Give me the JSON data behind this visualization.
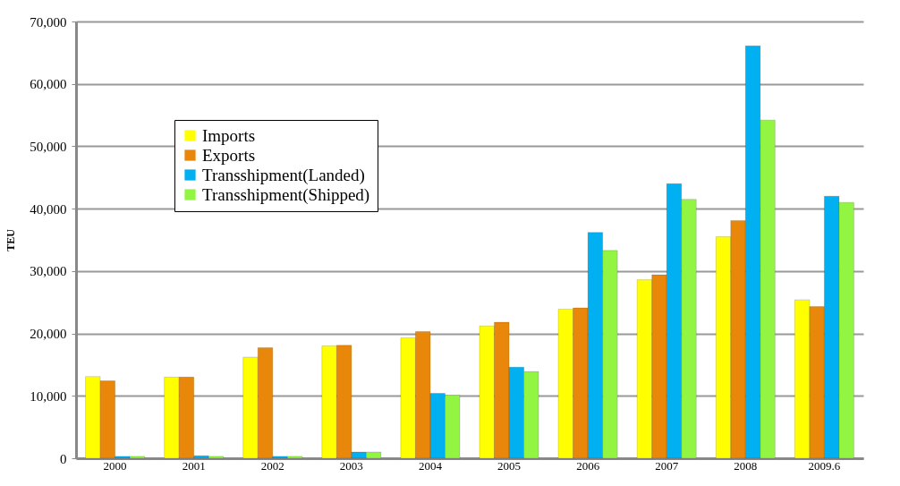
{
  "chart_data": {
    "type": "bar",
    "ylabel": "TEU",
    "categories": [
      "2000",
      "2001",
      "2002",
      "2003",
      "2004",
      "2005",
      "2006",
      "2007",
      "2008",
      "2009.6"
    ],
    "series": [
      {
        "name": "Imports",
        "color": "#ffff00",
        "values": [
          13100,
          13000,
          16200,
          18000,
          19300,
          21200,
          23900,
          28600,
          35500,
          25400
        ]
      },
      {
        "name": "Exports",
        "color": "#e8870a",
        "values": [
          12400,
          13000,
          17700,
          18100,
          20300,
          21800,
          24100,
          29400,
          38100,
          24300
        ]
      },
      {
        "name": "Transshipment(Landed)",
        "color": "#00b0f0",
        "values": [
          300,
          400,
          300,
          1000,
          10400,
          14600,
          36200,
          44000,
          66100,
          42000
        ]
      },
      {
        "name": "Transshipment(Shipped)",
        "color": "#92f542",
        "values": [
          300,
          300,
          300,
          1000,
          10100,
          13900,
          33300,
          41500,
          54200,
          41000
        ]
      }
    ],
    "ylim": [
      0,
      70000
    ],
    "yticks": [
      0,
      {
        "value": 10000,
        "label": "10,000"
      },
      {
        "value": 20000,
        "label": "20,000"
      },
      {
        "value": 30000,
        "label": "30,000"
      },
      {
        "value": 40000,
        "label": "40,000"
      },
      {
        "value": 50000,
        "label": "50,000"
      },
      {
        "value": 60000,
        "label": "60,000"
      },
      {
        "value": 70000,
        "label": "70,000"
      }
    ],
    "grid": "y",
    "legend": "top left"
  }
}
